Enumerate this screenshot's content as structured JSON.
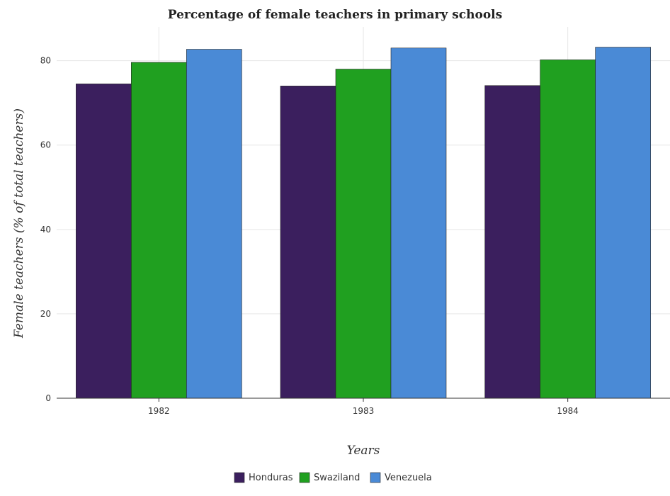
{
  "chart_data": {
    "type": "bar",
    "title": "Percentage of female teachers in primary schools",
    "xlabel": "Years",
    "ylabel": "Female teachers (% of total teachers)",
    "categories": [
      "1982",
      "1983",
      "1984"
    ],
    "series": [
      {
        "name": "Honduras",
        "color": "#3b1f5e",
        "values": [
          74.5,
          74.0,
          74.1
        ]
      },
      {
        "name": "Swaziland",
        "color": "#20a020",
        "values": [
          79.6,
          78.0,
          80.2
        ]
      },
      {
        "name": "Venezuela",
        "color": "#4a8ad6",
        "values": [
          82.7,
          83.0,
          83.2
        ]
      }
    ],
    "ylim": [
      0,
      88
    ],
    "yticks": [
      0,
      20,
      40,
      60,
      80
    ],
    "grid": true,
    "legend": "bottom-center"
  }
}
